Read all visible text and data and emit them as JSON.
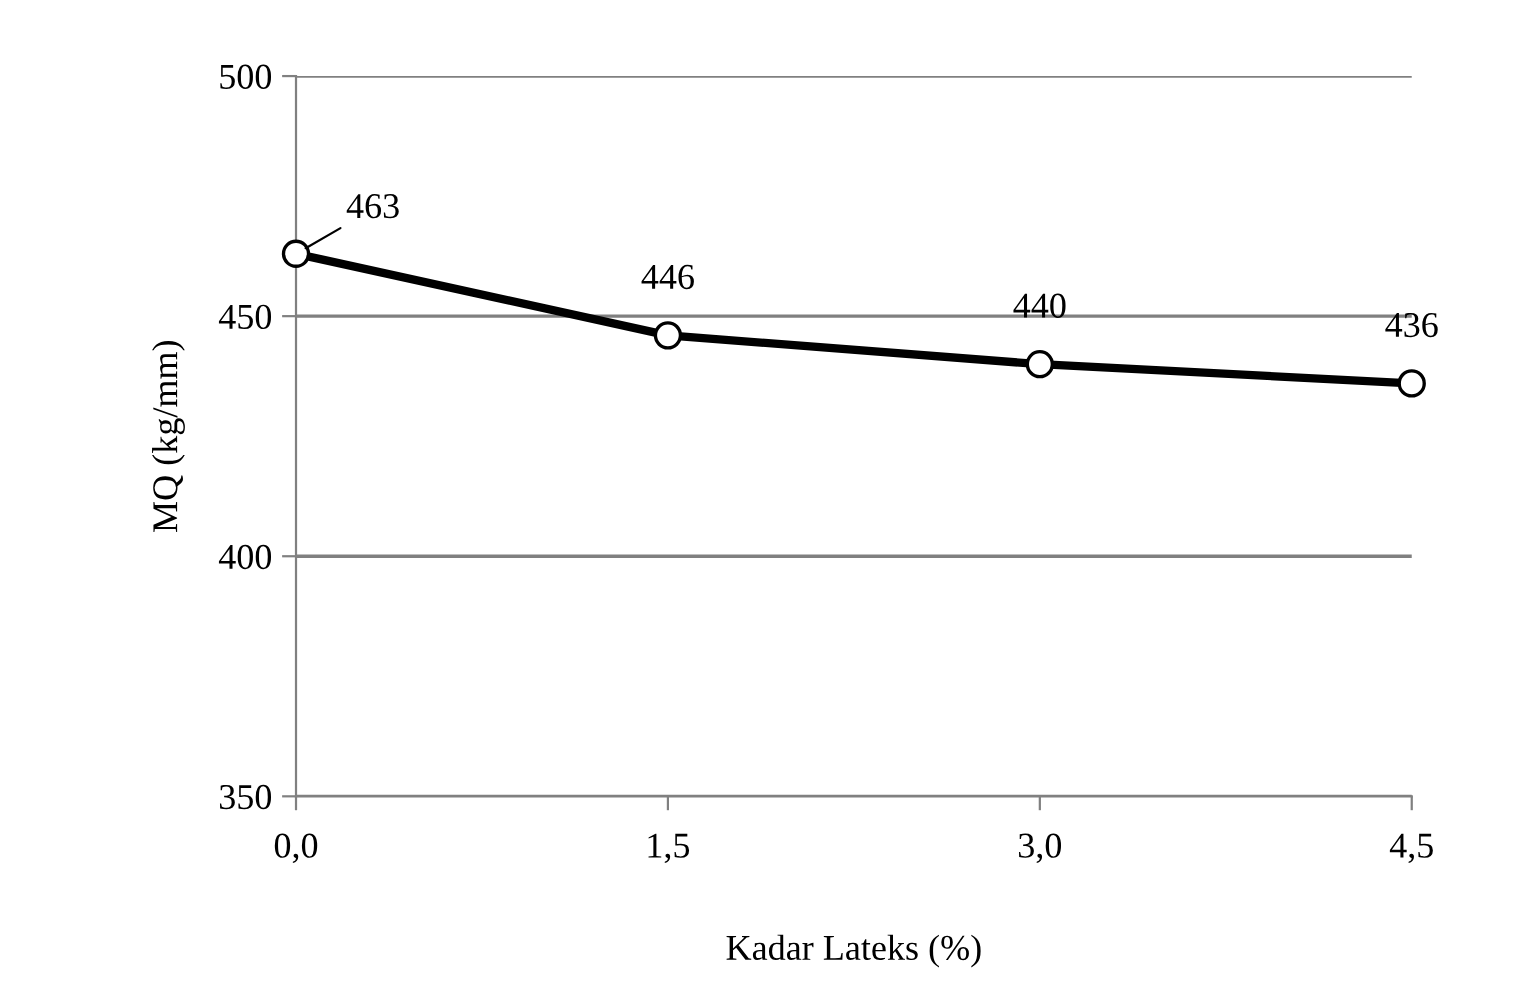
{
  "chart_data": {
    "type": "line",
    "xlabel": "Kadar Lateks (%)",
    "ylabel": "MQ (kg/mm)",
    "x": [
      0,
      1.5,
      3.0,
      4.5
    ],
    "series": [
      {
        "color": "#000000",
        "values": [
          463,
          446,
          440,
          436
        ]
      }
    ],
    "xlim": [
      0,
      4.5
    ],
    "xticks": [
      {
        "value": 0,
        "label": "0,0"
      },
      {
        "value": 1.5,
        "label": "1,5"
      },
      {
        "value": 3.0,
        "label": "3,0"
      },
      {
        "value": 4.5,
        "label": "4,5"
      }
    ],
    "ylim": [
      350,
      500
    ],
    "yticks": [
      350,
      400,
      450,
      500
    ],
    "grid": "y",
    "marker": "circle",
    "line_style": "solid",
    "data_labels": true
  }
}
